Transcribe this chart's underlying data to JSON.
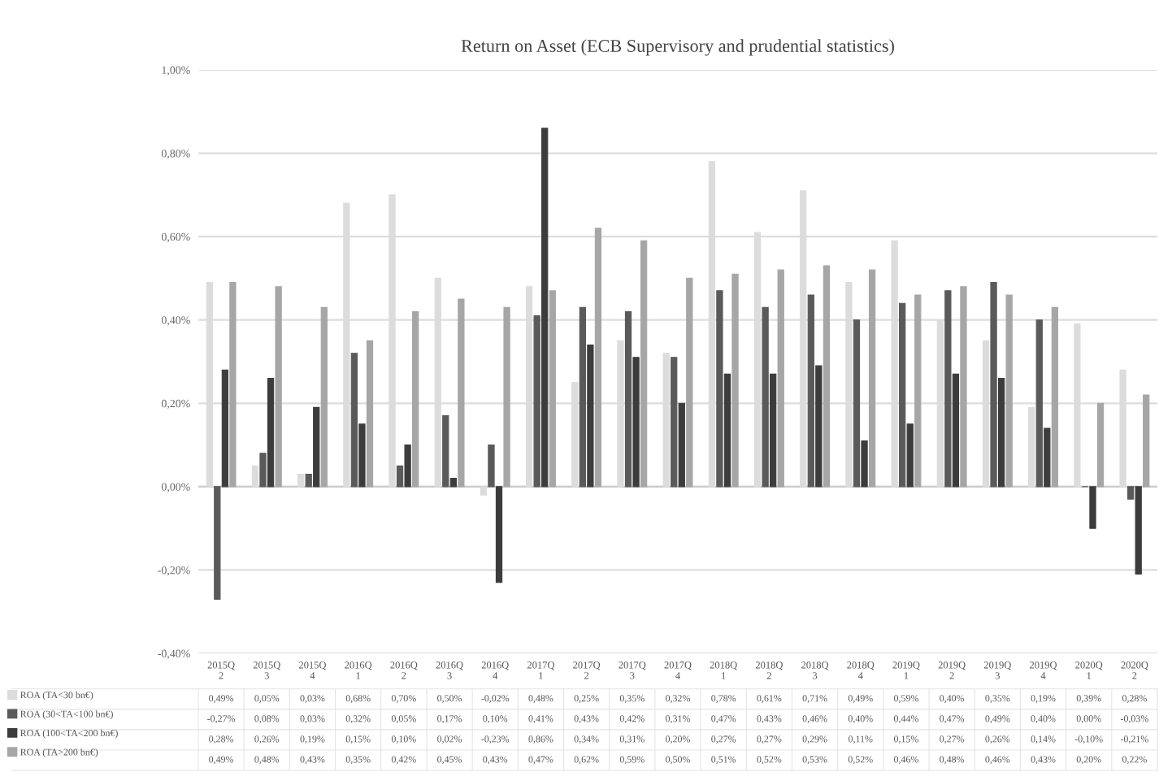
{
  "chart_data": {
    "type": "bar",
    "title": "Return on Asset (ECB Supervisory and prudential statistics)",
    "categories": [
      "2015Q\n2",
      "2015Q\n3",
      "2015Q\n4",
      "2016Q\n1",
      "2016Q\n2",
      "2016Q\n3",
      "2016Q\n4",
      "2017Q\n1",
      "2017Q\n2",
      "2017Q\n3",
      "2017Q\n4",
      "2018Q\n1",
      "2018Q\n2",
      "2018Q\n3",
      "2018Q\n4",
      "2019Q\n1",
      "2019Q\n2",
      "2019Q\n3",
      "2019Q\n4",
      "2020Q\n1",
      "2020Q\n2"
    ],
    "series": [
      {
        "name": "ROA (TA<30 bn€)",
        "color": "#dcdcdc",
        "values": [
          0.49,
          0.05,
          0.03,
          0.68,
          0.7,
          0.5,
          -0.02,
          0.48,
          0.25,
          0.35,
          0.32,
          0.78,
          0.61,
          0.71,
          0.49,
          0.59,
          0.4,
          0.35,
          0.19,
          0.39,
          0.28
        ],
        "value_labels": [
          "0,49%",
          "0,05%",
          "0,03%",
          "0,68%",
          "0,70%",
          "0,50%",
          "-0,02%",
          "0,48%",
          "0,25%",
          "0,35%",
          "0,32%",
          "0,78%",
          "0,61%",
          "0,71%",
          "0,49%",
          "0,59%",
          "0,40%",
          "0,35%",
          "0,19%",
          "0,39%",
          "0,28%"
        ]
      },
      {
        "name": "ROA (30<TA<100 bn€)",
        "color": "#5a5a5a",
        "values": [
          -0.27,
          0.08,
          0.03,
          0.32,
          0.05,
          0.17,
          0.1,
          0.41,
          0.43,
          0.42,
          0.31,
          0.47,
          0.43,
          0.46,
          0.4,
          0.44,
          0.47,
          0.49,
          0.4,
          0.0,
          -0.03
        ],
        "value_labels": [
          "-0,27%",
          "0,08%",
          "0,03%",
          "0,32%",
          "0,05%",
          "0,17%",
          "0,10%",
          "0,41%",
          "0,43%",
          "0,42%",
          "0,31%",
          "0,47%",
          "0,43%",
          "0,46%",
          "0,40%",
          "0,44%",
          "0,47%",
          "0,49%",
          "0,40%",
          "0,00%",
          "-0,03%"
        ]
      },
      {
        "name": "ROA (100<TA<200 bn€)",
        "color": "#3c3c3c",
        "values": [
          0.28,
          0.26,
          0.19,
          0.15,
          0.1,
          0.02,
          -0.23,
          0.86,
          0.34,
          0.31,
          0.2,
          0.27,
          0.27,
          0.29,
          0.11,
          0.15,
          0.27,
          0.26,
          0.14,
          -0.1,
          -0.21
        ],
        "value_labels": [
          "0,28%",
          "0,26%",
          "0,19%",
          "0,15%",
          "0,10%",
          "0,02%",
          "-0,23%",
          "0,86%",
          "0,34%",
          "0,31%",
          "0,20%",
          "0,27%",
          "0,27%",
          "0,29%",
          "0,11%",
          "0,15%",
          "0,27%",
          "0,26%",
          "0,14%",
          "-0,10%",
          "-0,21%"
        ]
      },
      {
        "name": "ROA (TA>200 bn€)",
        "color": "#a6a6a6",
        "values": [
          0.49,
          0.48,
          0.43,
          0.35,
          0.42,
          0.45,
          0.43,
          0.47,
          0.62,
          0.59,
          0.5,
          0.51,
          0.52,
          0.53,
          0.52,
          0.46,
          0.48,
          0.46,
          0.43,
          0.2,
          0.22
        ],
        "value_labels": [
          "0,49%",
          "0,48%",
          "0,43%",
          "0,35%",
          "0,42%",
          "0,45%",
          "0,43%",
          "0,47%",
          "0,62%",
          "0,59%",
          "0,50%",
          "0,51%",
          "0,52%",
          "0,53%",
          "0,52%",
          "0,46%",
          "0,48%",
          "0,46%",
          "0,43%",
          "0,20%",
          "0,22%"
        ]
      }
    ],
    "ylim": [
      -0.4,
      1.0
    ],
    "yticks": [
      {
        "value": -0.4,
        "label": "-0,40%"
      },
      {
        "value": -0.2,
        "label": "-0,20%"
      },
      {
        "value": 0,
        "label": "0,00%"
      },
      {
        "value": 0.2,
        "label": "0,20%"
      },
      {
        "value": 0.4,
        "label": "0,40%"
      },
      {
        "value": 0.6,
        "label": "0,60%"
      },
      {
        "value": 0.8,
        "label": "0,80%"
      },
      {
        "value": 1.0,
        "label": "1,00%"
      }
    ],
    "grid": "y",
    "legend": "bottom"
  }
}
